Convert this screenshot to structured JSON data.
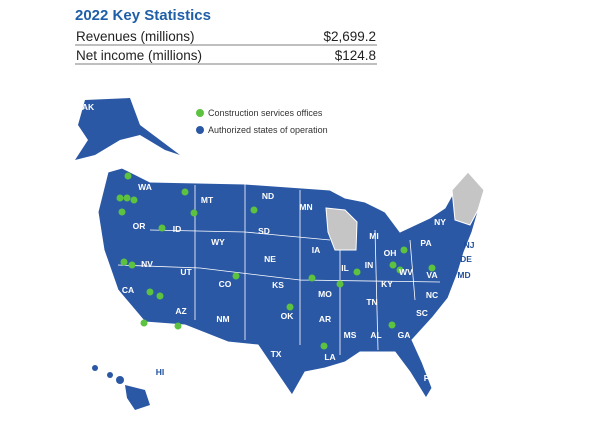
{
  "header": {
    "title": "2022 Key Statistics"
  },
  "table": {
    "rows": [
      [
        "Revenues (millions)",
        "$2,699.2"
      ],
      [
        "Net income (millions)",
        "$124.8"
      ]
    ]
  },
  "legend": {
    "items": [
      "Construction services offices",
      "Authorized states of operation"
    ]
  },
  "map": {
    "states": [
      "AK",
      "WA",
      "MT",
      "ND",
      "MN",
      "OR",
      "ID",
      "SD",
      "WY",
      "MI",
      "NY",
      "IA",
      "NE",
      "NV",
      "UT",
      "IL",
      "IN",
      "OH",
      "PA",
      "NJ",
      "DE",
      "MD",
      "CA",
      "CO",
      "KS",
      "MO",
      "KY",
      "WV",
      "VA",
      "TN",
      "NC",
      "SC",
      "AZ",
      "NM",
      "OK",
      "AR",
      "MS",
      "AL",
      "GA",
      "TX",
      "LA",
      "FL",
      "HI"
    ]
  }
}
